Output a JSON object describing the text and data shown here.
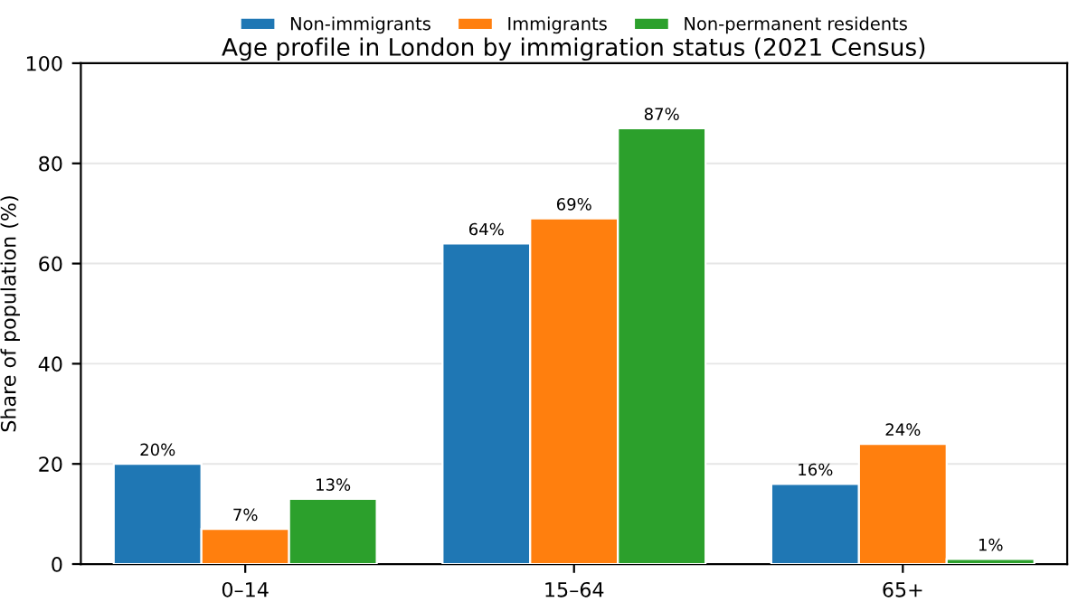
{
  "chart_data": {
    "type": "bar",
    "title": "Age profile in London by immigration status (2021 Census)",
    "ylabel": "Share of population (%)",
    "categories": [
      "0–14",
      "15–64",
      "65+"
    ],
    "series": [
      {
        "name": "Non-immigrants",
        "color": "#1f77b4",
        "values": [
          20,
          64,
          16
        ],
        "value_labels": [
          "20%",
          "64%",
          "16%"
        ]
      },
      {
        "name": "Immigrants",
        "color": "#ff7f0e",
        "values": [
          7,
          69,
          24
        ],
        "value_labels": [
          "7%",
          "69%",
          "24%"
        ]
      },
      {
        "name": "Non-permanent residents",
        "color": "#2ca02c",
        "values": [
          13,
          87,
          1
        ],
        "value_labels": [
          "13%",
          "87%",
          "1%"
        ]
      }
    ],
    "ylim": [
      0,
      100
    ],
    "yticks": [
      0,
      20,
      40,
      60,
      80,
      100
    ],
    "grid": "y",
    "legend": "top"
  }
}
